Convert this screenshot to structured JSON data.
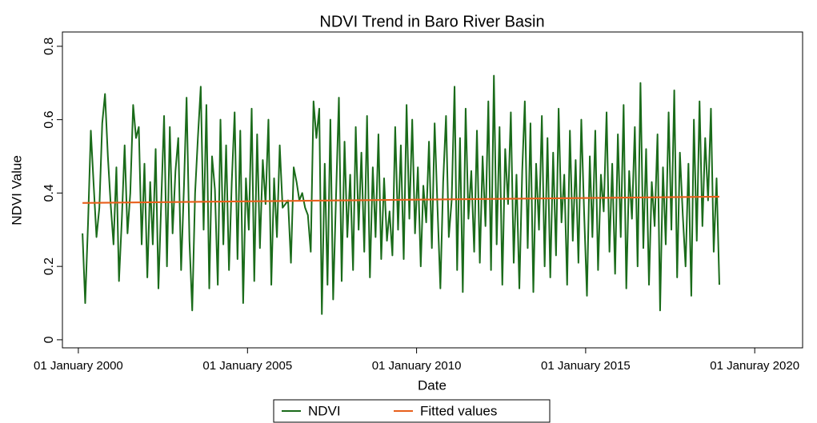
{
  "chart_data": {
    "type": "line",
    "title": "NDVI Trend  in Baro River Basin",
    "x_label": "Date",
    "y_label": "NDVI Value",
    "xlim": [
      "1999-07-13",
      "2021-06-01"
    ],
    "xticks": [
      {
        "value": "2000-01-01",
        "label": "01 January 2000"
      },
      {
        "value": "2005-01-01",
        "label": "01 January 2005"
      },
      {
        "value": "2010-01-01",
        "label": "01 January 2010"
      },
      {
        "value": "2015-01-01",
        "label": "01 January 2015"
      },
      {
        "value": "2020-01-01",
        "label": "01 Januray 2020"
      }
    ],
    "ylim": [
      -0.022,
      0.839
    ],
    "yticks": [
      0,
      0.2,
      0.4,
      0.6,
      0.8
    ],
    "grid": false,
    "legend": "bottom",
    "series": [
      {
        "name": "NDVI",
        "color": "#1a6b1a",
        "x": [
          "2000-02-15",
          "2000-03-15",
          "2000-04-15",
          "2000-05-15",
          "2000-06-15",
          "2000-07-15",
          "2000-08-15",
          "2000-09-15",
          "2000-10-15",
          "2000-11-15",
          "2000-12-15",
          "2001-01-15",
          "2001-02-15",
          "2001-03-15",
          "2001-04-15",
          "2001-05-15",
          "2001-06-15",
          "2001-07-15",
          "2001-08-15",
          "2001-09-15",
          "2001-10-15",
          "2001-11-15",
          "2001-12-15",
          "2002-01-15",
          "2002-02-15",
          "2002-03-15",
          "2002-04-15",
          "2002-05-15",
          "2002-06-15",
          "2002-07-15",
          "2002-08-15",
          "2002-09-15",
          "2002-10-15",
          "2002-11-15",
          "2002-12-15",
          "2003-01-15",
          "2003-02-15",
          "2003-03-15",
          "2003-04-15",
          "2003-05-15",
          "2003-06-15",
          "2003-07-15",
          "2003-08-15",
          "2003-09-15",
          "2003-10-15",
          "2003-11-15",
          "2003-12-15",
          "2004-01-15",
          "2004-02-15",
          "2004-03-15",
          "2004-04-15",
          "2004-05-15",
          "2004-06-15",
          "2004-07-15",
          "2004-08-15",
          "2004-09-15",
          "2004-10-15",
          "2004-11-15",
          "2004-12-15",
          "2005-01-15",
          "2005-02-15",
          "2005-03-15",
          "2005-04-15",
          "2005-05-15",
          "2005-06-15",
          "2005-07-15",
          "2005-08-15",
          "2005-09-15",
          "2005-10-15",
          "2005-11-15",
          "2005-12-15",
          "2006-01-15",
          "2006-02-15",
          "2006-03-15",
          "2006-04-15",
          "2006-05-15",
          "2006-06-15",
          "2006-07-15",
          "2006-08-15",
          "2006-09-15",
          "2006-10-15",
          "2006-11-15",
          "2006-12-15",
          "2007-01-15",
          "2007-02-15",
          "2007-03-15",
          "2007-04-15",
          "2007-05-15",
          "2007-06-15",
          "2007-07-15",
          "2007-08-15",
          "2007-09-15",
          "2007-10-15",
          "2007-11-15",
          "2007-12-15",
          "2008-01-15",
          "2008-02-15",
          "2008-03-15",
          "2008-04-15",
          "2008-05-15",
          "2008-06-15",
          "2008-07-15",
          "2008-08-15",
          "2008-09-15",
          "2008-10-15",
          "2008-11-15",
          "2008-12-15",
          "2009-01-15",
          "2009-02-15",
          "2009-03-15",
          "2009-04-15",
          "2009-05-15",
          "2009-06-15",
          "2009-07-15",
          "2009-08-15",
          "2009-09-15",
          "2009-10-15",
          "2009-11-15",
          "2009-12-15",
          "2010-01-15",
          "2010-02-15",
          "2010-03-15",
          "2010-04-15",
          "2010-05-15",
          "2010-06-15",
          "2010-07-15",
          "2010-08-15",
          "2010-09-15",
          "2010-10-15",
          "2010-11-15",
          "2010-12-15",
          "2011-01-15",
          "2011-02-15",
          "2011-03-15",
          "2011-04-15",
          "2011-05-15",
          "2011-06-15",
          "2011-07-15",
          "2011-08-15",
          "2011-09-15",
          "2011-10-15",
          "2011-11-15",
          "2011-12-15",
          "2012-01-15",
          "2012-02-15",
          "2012-03-15",
          "2012-04-15",
          "2012-05-15",
          "2012-06-15",
          "2012-07-15",
          "2012-08-15",
          "2012-09-15",
          "2012-10-15",
          "2012-11-15",
          "2012-12-15",
          "2013-01-15",
          "2013-02-15",
          "2013-03-15",
          "2013-04-15",
          "2013-05-15",
          "2013-06-15",
          "2013-07-15",
          "2013-08-15",
          "2013-09-15",
          "2013-10-15",
          "2013-11-15",
          "2013-12-15",
          "2014-01-15",
          "2014-02-15",
          "2014-03-15",
          "2014-04-15",
          "2014-05-15",
          "2014-06-15",
          "2014-07-15",
          "2014-08-15",
          "2014-09-15",
          "2014-10-15",
          "2014-11-15",
          "2014-12-15",
          "2015-01-15",
          "2015-02-15",
          "2015-03-15",
          "2015-04-15",
          "2015-05-15",
          "2015-06-15",
          "2015-07-15",
          "2015-08-15",
          "2015-09-15",
          "2015-10-15",
          "2015-11-15",
          "2015-12-15",
          "2016-01-15",
          "2016-02-15",
          "2016-03-15",
          "2016-04-15",
          "2016-05-15",
          "2016-06-15",
          "2016-07-15",
          "2016-08-15",
          "2016-09-15",
          "2016-10-15",
          "2016-11-15",
          "2016-12-15",
          "2017-01-15",
          "2017-02-15",
          "2017-03-15",
          "2017-04-15",
          "2017-05-15",
          "2017-06-15",
          "2017-07-15",
          "2017-08-15",
          "2017-09-15",
          "2017-10-15",
          "2017-11-15",
          "2017-12-15",
          "2018-01-15",
          "2018-02-15",
          "2018-03-15",
          "2018-04-15",
          "2018-05-15",
          "2018-06-15",
          "2018-07-15",
          "2018-08-15",
          "2018-09-15",
          "2018-10-15",
          "2018-11-15",
          "2018-12-15"
        ],
        "values": [
          0.29,
          0.1,
          0.32,
          0.57,
          0.42,
          0.28,
          0.36,
          0.59,
          0.67,
          0.5,
          0.37,
          0.26,
          0.47,
          0.16,
          0.33,
          0.53,
          0.29,
          0.4,
          0.64,
          0.55,
          0.58,
          0.26,
          0.48,
          0.17,
          0.43,
          0.26,
          0.52,
          0.14,
          0.38,
          0.61,
          0.2,
          0.58,
          0.29,
          0.46,
          0.55,
          0.19,
          0.42,
          0.66,
          0.27,
          0.08,
          0.4,
          0.55,
          0.69,
          0.3,
          0.64,
          0.14,
          0.5,
          0.41,
          0.15,
          0.6,
          0.26,
          0.53,
          0.19,
          0.43,
          0.62,
          0.22,
          0.57,
          0.1,
          0.44,
          0.3,
          0.63,
          0.16,
          0.56,
          0.25,
          0.49,
          0.37,
          0.6,
          0.15,
          0.44,
          0.28,
          0.53,
          0.36,
          0.37,
          0.38,
          0.21,
          0.47,
          0.43,
          0.38,
          0.4,
          0.36,
          0.34,
          0.24,
          0.65,
          0.55,
          0.63,
          0.07,
          0.48,
          0.15,
          0.6,
          0.11,
          0.39,
          0.66,
          0.16,
          0.54,
          0.28,
          0.45,
          0.19,
          0.58,
          0.3,
          0.51,
          0.24,
          0.61,
          0.17,
          0.47,
          0.28,
          0.56,
          0.22,
          0.44,
          0.27,
          0.35,
          0.23,
          0.58,
          0.3,
          0.53,
          0.22,
          0.64,
          0.33,
          0.6,
          0.29,
          0.47,
          0.2,
          0.42,
          0.32,
          0.54,
          0.25,
          0.59,
          0.36,
          0.14,
          0.43,
          0.61,
          0.28,
          0.38,
          0.69,
          0.19,
          0.55,
          0.13,
          0.63,
          0.33,
          0.46,
          0.24,
          0.57,
          0.21,
          0.5,
          0.31,
          0.65,
          0.19,
          0.72,
          0.26,
          0.58,
          0.15,
          0.52,
          0.37,
          0.62,
          0.21,
          0.45,
          0.14,
          0.46,
          0.65,
          0.25,
          0.59,
          0.13,
          0.48,
          0.3,
          0.61,
          0.2,
          0.55,
          0.17,
          0.51,
          0.23,
          0.63,
          0.32,
          0.45,
          0.15,
          0.57,
          0.27,
          0.49,
          0.21,
          0.6,
          0.35,
          0.12,
          0.5,
          0.28,
          0.57,
          0.19,
          0.45,
          0.35,
          0.62,
          0.24,
          0.48,
          0.18,
          0.56,
          0.28,
          0.64,
          0.14,
          0.46,
          0.33,
          0.58,
          0.2,
          0.7,
          0.25,
          0.52,
          0.15,
          0.43,
          0.31,
          0.56,
          0.08,
          0.47,
          0.26,
          0.62,
          0.3,
          0.68,
          0.17,
          0.51,
          0.34,
          0.2,
          0.48,
          0.12,
          0.6,
          0.27,
          0.65,
          0.31,
          0.55,
          0.38,
          0.63,
          0.24,
          0.44,
          0.15
        ]
      },
      {
        "name": "Fitted values",
        "color": "#e8601c",
        "x": [
          "2000-02-15",
          "2018-12-15"
        ],
        "values": [
          0.373,
          0.39
        ]
      }
    ]
  }
}
